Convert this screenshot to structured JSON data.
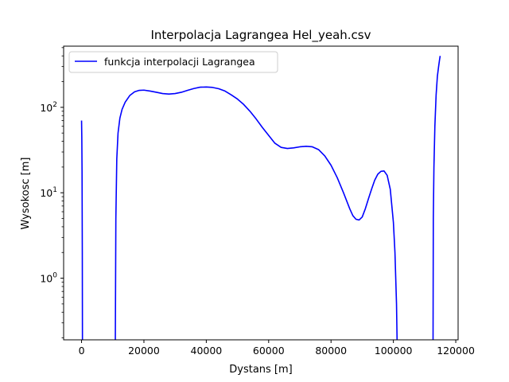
{
  "chart_data": {
    "type": "line",
    "title": "Interpolacja Lagrangea Hel_yeah.csv",
    "xlabel": "Dystans [m]",
    "ylabel": "Wysokosc [m]",
    "x_scale": "linear",
    "y_scale": "log",
    "xlim": [
      -5750,
      120750
    ],
    "ylim": [
      0.19,
      520
    ],
    "x_ticks": [
      0,
      20000,
      40000,
      60000,
      80000,
      100000,
      120000
    ],
    "x_tick_labels": [
      "0",
      "20000",
      "40000",
      "60000",
      "80000",
      "100000",
      "120000"
    ],
    "y_ticks": [
      1,
      10,
      100
    ],
    "y_tick_labels": [
      "10^0",
      "10^1",
      "10^2"
    ],
    "grid": false,
    "legend_position": "upper-left",
    "series": [
      {
        "name": "funkcja interpolacji Lagrangea",
        "color": "#0000ff",
        "segments": [
          {
            "x": [
              0,
              80,
              160,
              240,
              300
            ],
            "y": [
              70,
              45,
              18,
              2,
              0.1
            ]
          },
          {
            "x": [
              10800,
              11000,
              11300,
              11700,
              12300,
              13000,
              14000,
              15500,
              17000,
              18500,
              20000,
              22000,
              24000,
              26000,
              28000,
              30000,
              32000,
              34000,
              36000,
              38000,
              40000,
              42000,
              44000,
              46000,
              48000,
              50000,
              52000,
              54000,
              56000,
              58000,
              60000,
              62000,
              64000,
              66000,
              68000,
              70000,
              72000,
              74000,
              76000,
              78000,
              80000,
              82000,
              84000,
              86000,
              87000,
              88000,
              89000,
              90000,
              91000,
              92000,
              93000,
              94000,
              95000,
              96000,
              97000,
              98000,
              99000,
              100000,
              100500,
              101000,
              101300
            ],
            "y": [
              0.1,
              5,
              25,
              50,
              75,
              95,
              115,
              138,
              152,
              158,
              159,
              155,
              150,
              145,
              143,
              145,
              150,
              158,
              166,
              172,
              173,
              171,
              165,
              155,
              140,
              125,
              108,
              90,
              73,
              58,
              47,
              38,
              34,
              33,
              33.5,
              34.5,
              35,
              34.5,
              32,
              27,
              21,
              15,
              10,
              6.5,
              5.4,
              4.9,
              4.8,
              5.2,
              6.5,
              8.5,
              11,
              14,
              16.5,
              17.8,
              18,
              16,
              11,
              4.5,
              2,
              0.5,
              0.1
            ]
          },
          {
            "x": [
              112700,
              112800,
              113000,
              113300,
              113700,
              114100,
              114500,
              114800,
              115000
            ],
            "y": [
              0.1,
              5,
              20,
              60,
              140,
              230,
              300,
              360,
              400
            ]
          }
        ]
      }
    ]
  }
}
